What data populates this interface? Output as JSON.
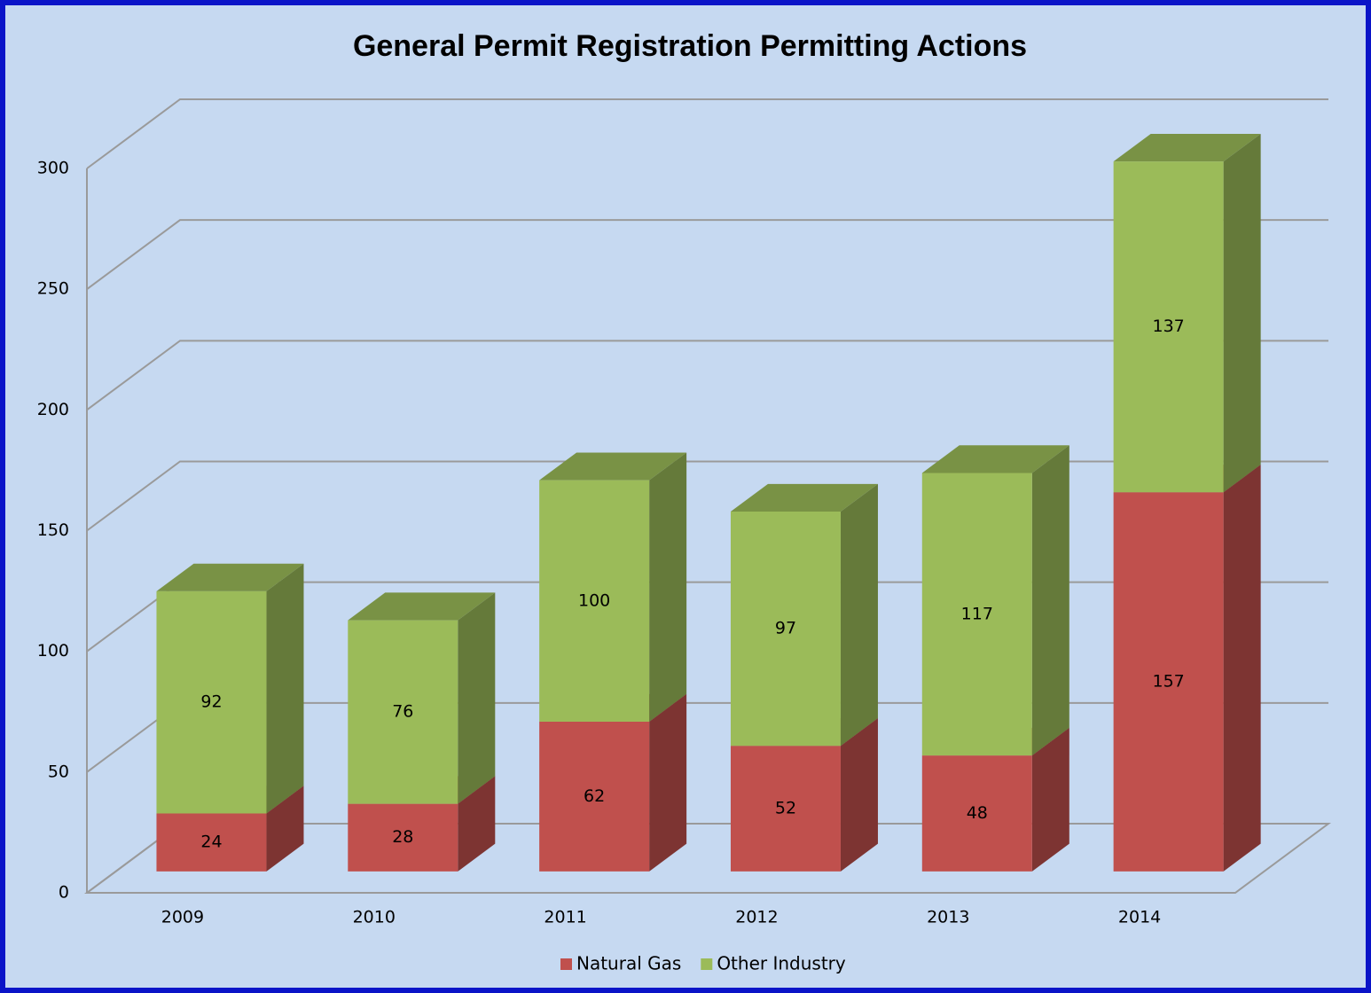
{
  "chart_data": {
    "type": "bar3d_stacked",
    "title": "General Permit Registration Permitting Actions",
    "categories": [
      "2009",
      "2010",
      "2011",
      "2012",
      "2013",
      "2014"
    ],
    "series": [
      {
        "name": "Natural Gas",
        "color": "#c0504d",
        "values": [
          24,
          28,
          62,
          52,
          48,
          157
        ]
      },
      {
        "name": "Other Industry",
        "color": "#9bbb59",
        "values": [
          92,
          76,
          100,
          97,
          117,
          137
        ]
      }
    ],
    "ylim": [
      0,
      300
    ],
    "yticks": [
      0,
      50,
      100,
      150,
      200,
      250,
      300
    ],
    "grid": true,
    "legend": "bottom"
  }
}
